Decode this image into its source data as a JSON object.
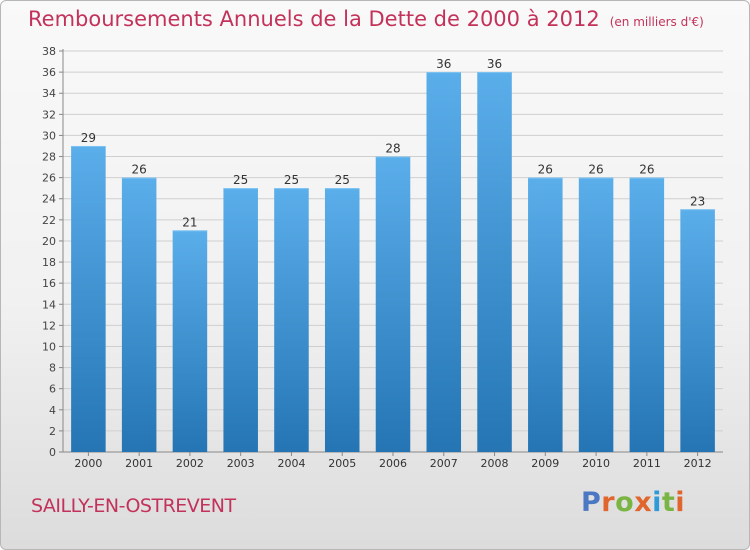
{
  "header": {
    "title": "Remboursements Annuels de la Dette de 2000 à 2012",
    "unit": "(en milliers d'€)"
  },
  "footer": {
    "commune": "SAILLY-EN-OSTREVENT",
    "brand": "Proxiti",
    "brand_letters": [
      {
        "char": "P",
        "color": "#4a78c2"
      },
      {
        "char": "r",
        "color": "#e0662e"
      },
      {
        "char": "o",
        "color": "#7ab543"
      },
      {
        "char": "x",
        "color": "#e0662e"
      },
      {
        "char": "i",
        "color": "#2e9ad8"
      },
      {
        "char": "t",
        "color": "#7ab543"
      },
      {
        "char": "i",
        "color": "#e0662e"
      }
    ]
  },
  "colors": {
    "title": "#c3325a",
    "bar_top": "#5aaeea",
    "bar_bottom": "#2575b4",
    "grid": "#cfcfcf"
  },
  "chart_data": {
    "type": "bar",
    "title": "Remboursements Annuels de la Dette de 2000 à 2012",
    "subtitle": "(en milliers d'€)",
    "xlabel": "",
    "ylabel": "",
    "categories": [
      "2000",
      "2001",
      "2002",
      "2003",
      "2004",
      "2005",
      "2006",
      "2007",
      "2008",
      "2009",
      "2010",
      "2011",
      "2012"
    ],
    "values": [
      29,
      26,
      21,
      25,
      25,
      25,
      28,
      36,
      36,
      26,
      26,
      26,
      23
    ],
    "ylim": [
      0,
      38
    ],
    "ytick_step": 2,
    "grid": true,
    "data_labels": true
  }
}
